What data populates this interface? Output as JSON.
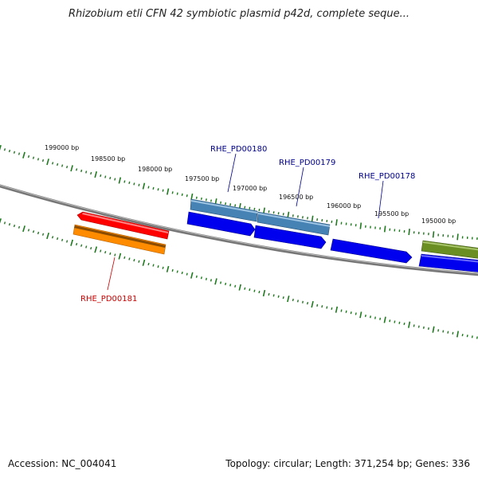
{
  "title": "Rhizobium etli CFN 42 symbiotic plasmid p42d, complete seque...",
  "footer": {
    "accession": "Accession: NC_004041",
    "summary": "Topology: circular; Length: 371,254 bp; Genes: 336"
  },
  "ruler": {
    "labels": [
      "199000 bp",
      "198500 bp",
      "198000 bp",
      "197500 bp",
      "197000 bp",
      "196500 bp",
      "196000 bp",
      "195500 bp",
      "195000 bp"
    ]
  },
  "genes": [
    {
      "name": "RHE_PD00180",
      "color": "#00008b"
    },
    {
      "name": "RHE_PD00179",
      "color": "#00008b"
    },
    {
      "name": "RHE_PD00178",
      "color": "#00008b"
    },
    {
      "name": "RHE_PD00181",
      "color": "#cc0000"
    }
  ],
  "colors": {
    "backbone": "#777777",
    "tick": "#1f7a1f",
    "red_cds": "#ff0000",
    "orange_cds": "#ff8c00",
    "blue_cds": "#0000ee",
    "steelblue_cds": "#4682b4",
    "olive_cds": "#6b8e23"
  }
}
